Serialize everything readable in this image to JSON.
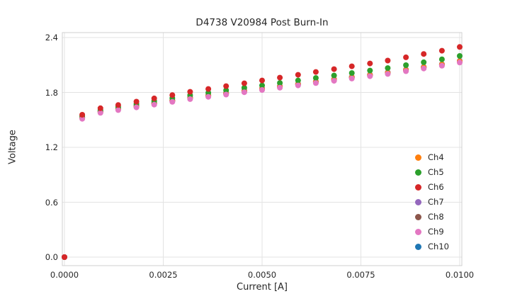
{
  "chart_data": {
    "type": "scatter",
    "title": "D4738 V20984 Post Burn-In",
    "xlabel": "Current [A]",
    "ylabel": "Voltage",
    "xlim": [
      0,
      0.01
    ],
    "ylim": [
      0,
      2.4
    ],
    "xticks": [
      0,
      0.0025,
      0.005,
      0.0075,
      0.01
    ],
    "xtick_labels": [
      "0.0000",
      "0.0025",
      "0.0050",
      "0.0075",
      "0.0100"
    ],
    "yticks": [
      0,
      0.6,
      1.2,
      1.8,
      2.4
    ],
    "ytick_labels": [
      "0.0",
      "0.6",
      "1.2",
      "1.8",
      "2.4"
    ],
    "grid": true,
    "grid_color": "#e3e3e3",
    "frame_color": "#cfcfcf",
    "legend_position": "lower right",
    "marker": "circle",
    "x": [
      0,
      0.00045,
      0.00091,
      0.00136,
      0.00182,
      0.00227,
      0.00273,
      0.00318,
      0.00364,
      0.00409,
      0.00455,
      0.005,
      0.00545,
      0.00591,
      0.00636,
      0.00682,
      0.00727,
      0.00773,
      0.00818,
      0.00864,
      0.00909,
      0.00955,
      0.01
    ],
    "series": [
      {
        "name": "Ch4",
        "color": "#ff7f0e",
        "values": [
          0,
          1.525,
          1.59,
          1.62,
          1.65,
          1.68,
          1.71,
          1.74,
          1.765,
          1.79,
          1.815,
          1.84,
          1.865,
          1.89,
          1.915,
          1.94,
          1.965,
          1.99,
          2.015,
          2.045,
          2.075,
          2.105,
          2.14
        ]
      },
      {
        "name": "Ch5",
        "color": "#2ca02c",
        "values": [
          0,
          1.542,
          1.609,
          1.641,
          1.673,
          1.705,
          1.737,
          1.769,
          1.796,
          1.823,
          1.85,
          1.877,
          1.904,
          1.931,
          1.958,
          1.985,
          2.012,
          2.039,
          2.066,
          2.098,
          2.13,
          2.162,
          2.199
        ]
      },
      {
        "name": "Ch6",
        "color": "#d62728",
        "values": [
          0,
          1.556,
          1.627,
          1.663,
          1.699,
          1.735,
          1.771,
          1.807,
          1.838,
          1.869,
          1.9,
          1.931,
          1.962,
          1.993,
          2.024,
          2.055,
          2.086,
          2.117,
          2.148,
          2.184,
          2.22,
          2.256,
          2.297
        ]
      },
      {
        "name": "Ch7",
        "color": "#9467bd",
        "values": [
          0,
          1.53,
          1.595,
          1.625,
          1.655,
          1.685,
          1.715,
          1.745,
          1.77,
          1.795,
          1.82,
          1.845,
          1.87,
          1.895,
          1.92,
          1.945,
          1.97,
          1.995,
          2.02,
          2.05,
          2.08,
          2.11,
          2.145
        ]
      },
      {
        "name": "Ch8",
        "color": "#8c564b",
        "values": [
          0,
          1.52,
          1.585,
          1.615,
          1.645,
          1.675,
          1.705,
          1.735,
          1.76,
          1.785,
          1.81,
          1.835,
          1.86,
          1.885,
          1.91,
          1.935,
          1.96,
          1.985,
          2.01,
          2.04,
          2.07,
          2.1,
          2.135
        ]
      },
      {
        "name": "Ch9",
        "color": "#e377c2",
        "values": [
          0,
          1.512,
          1.577,
          1.607,
          1.637,
          1.667,
          1.697,
          1.727,
          1.752,
          1.777,
          1.802,
          1.827,
          1.852,
          1.877,
          1.902,
          1.927,
          1.952,
          1.977,
          2.002,
          2.032,
          2.062,
          2.092,
          2.127
        ]
      },
      {
        "name": "Ch10",
        "color": "#1f77b4",
        "values": [
          0,
          1.528,
          1.593,
          1.623,
          1.653,
          1.683,
          1.713,
          1.743,
          1.768,
          1.793,
          1.818,
          1.843,
          1.868,
          1.893,
          1.918,
          1.943,
          1.968,
          1.993,
          2.018,
          2.048,
          2.078,
          2.108,
          2.143
        ]
      }
    ],
    "draw_order": [
      "Ch10",
      "Ch8",
      "Ch7",
      "Ch4",
      "Ch5",
      "Ch9",
      "Ch6"
    ],
    "marker_radius_px": 4
  }
}
